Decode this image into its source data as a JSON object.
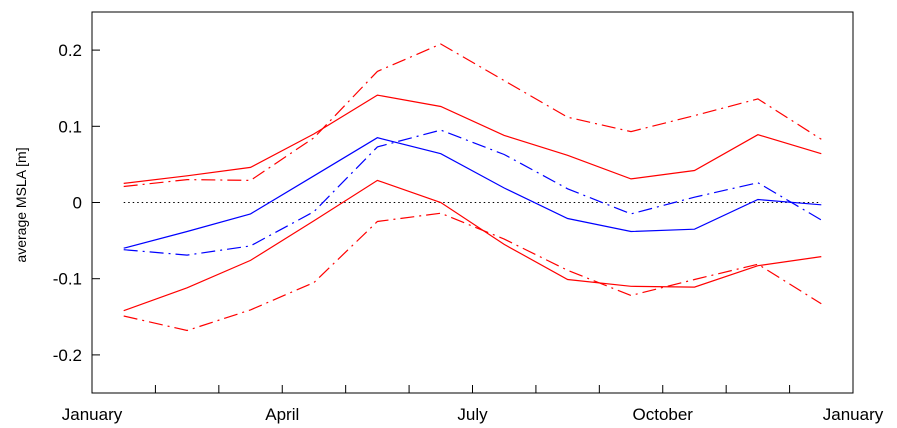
{
  "chart_data": {
    "type": "line",
    "title": "",
    "xlabel": "",
    "ylabel": "average MSLA [m]",
    "ylim": [
      -0.25,
      0.25
    ],
    "xlim": [
      0,
      12
    ],
    "grid": false,
    "x_ticks": [
      {
        "pos": 0,
        "label": "January"
      },
      {
        "pos": 1,
        "label": ""
      },
      {
        "pos": 2,
        "label": ""
      },
      {
        "pos": 3,
        "label": "April"
      },
      {
        "pos": 4,
        "label": ""
      },
      {
        "pos": 5,
        "label": ""
      },
      {
        "pos": 6,
        "label": "July"
      },
      {
        "pos": 7,
        "label": ""
      },
      {
        "pos": 8,
        "label": ""
      },
      {
        "pos": 9,
        "label": "October"
      },
      {
        "pos": 10,
        "label": ""
      },
      {
        "pos": 11,
        "label": ""
      },
      {
        "pos": 12,
        "label": "January"
      }
    ],
    "y_ticks": [
      {
        "value": 0.2,
        "label": "0.2"
      },
      {
        "value": 0.1,
        "label": "0.1"
      },
      {
        "value": 0,
        "label": "0"
      },
      {
        "value": -0.1,
        "label": "-0.1"
      },
      {
        "value": -0.2,
        "label": "-0.2"
      }
    ],
    "x": [
      0.5,
      1.5,
      2.5,
      3.5,
      4.5,
      5.5,
      6.5,
      7.5,
      8.5,
      9.5,
      10.5,
      11.5
    ],
    "series": [
      {
        "color": "#ff0000",
        "style": "solid",
        "values": [
          0.025,
          0.035,
          0.046,
          0.09,
          0.141,
          0.126,
          0.088,
          0.062,
          0.031,
          0.042,
          0.089,
          0.064
        ]
      },
      {
        "color": "#ff0000",
        "style": "dashdot",
        "values": [
          0.021,
          0.03,
          0.029,
          0.085,
          0.172,
          0.208,
          0.16,
          0.112,
          0.093,
          0.114,
          0.136,
          0.083
        ]
      },
      {
        "color": "#0000ff",
        "style": "solid",
        "values": [
          -0.06,
          -0.038,
          -0.015,
          0.035,
          0.085,
          0.064,
          0.019,
          -0.021,
          -0.038,
          -0.035,
          0.004,
          -0.003
        ]
      },
      {
        "color": "#0000ff",
        "style": "dashdot",
        "values": [
          -0.062,
          -0.069,
          -0.057,
          -0.012,
          0.073,
          0.095,
          0.063,
          0.018,
          -0.015,
          0.007,
          0.026,
          -0.023
        ]
      },
      {
        "color": "#ff0000",
        "style": "solid",
        "values": [
          -0.142,
          -0.112,
          -0.076,
          -0.024,
          0.029,
          0.0,
          -0.055,
          -0.101,
          -0.11,
          -0.111,
          -0.083,
          -0.071
        ]
      },
      {
        "color": "#ff0000",
        "style": "dashdot",
        "values": [
          -0.149,
          -0.168,
          -0.141,
          -0.105,
          -0.025,
          -0.014,
          -0.048,
          -0.089,
          -0.122,
          -0.101,
          -0.081,
          -0.133
        ]
      }
    ],
    "zero_line": {
      "value": 0,
      "color": "#000000",
      "style": "dotted"
    }
  }
}
